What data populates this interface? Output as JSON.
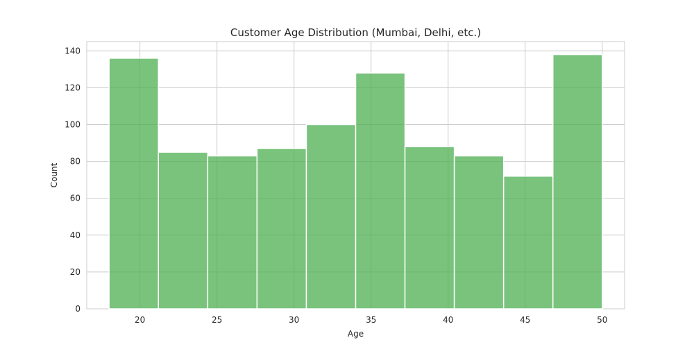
{
  "chart_data": {
    "type": "bar",
    "title": "Customer Age Distribution (Mumbai, Delhi, etc.)",
    "xlabel": "Age",
    "ylabel": "Count",
    "bin_edges": [
      18,
      21.2,
      24.4,
      27.6,
      30.8,
      34,
      37.2,
      40.4,
      43.6,
      46.8,
      50
    ],
    "values": [
      136,
      85,
      83,
      87,
      100,
      128,
      88,
      83,
      72,
      138
    ],
    "xlim": [
      16.55,
      51.45
    ],
    "ylim": [
      0,
      145
    ],
    "xticks": [
      20,
      25,
      30,
      35,
      40,
      45,
      50
    ],
    "yticks": [
      0,
      20,
      40,
      60,
      80,
      100,
      120,
      140
    ],
    "grid": true,
    "bar_color": "#4caf50"
  }
}
